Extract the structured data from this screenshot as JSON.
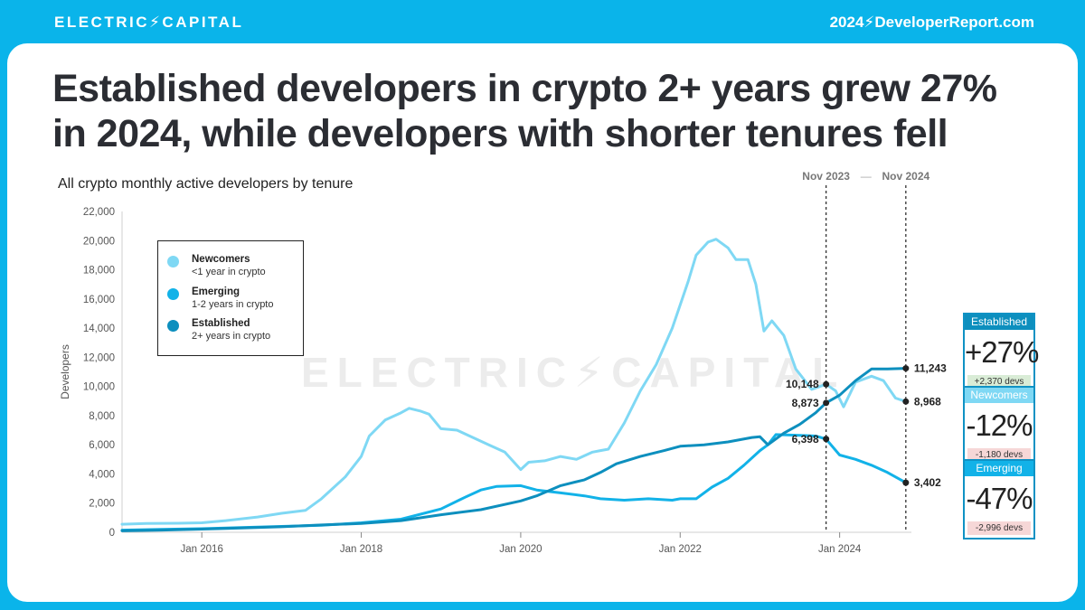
{
  "header": {
    "logo": "ELECTRIC⚡CAPITAL",
    "site": "2024⚡DeveloperReport.com"
  },
  "headline": "Established developers in crypto 2+ years grew 27% in 2024, while developers with shorter tenures fell",
  "subtitle": "All crypto monthly active developers by tenure",
  "watermark": "ELECTRIC⚡CAPITAL",
  "colors": {
    "brand": "#0ab4ea",
    "newcomers": "#7fd8f4",
    "emerging": "#12b2e8",
    "established": "#0d8fbe",
    "positive": "#d9ecd6",
    "negative": "#f6d7d7"
  },
  "legend": [
    {
      "name": "Newcomers",
      "desc": "<1 year in crypto",
      "color_key": "newcomers"
    },
    {
      "name": "Emerging",
      "desc": "1-2 years in crypto",
      "color_key": "emerging"
    },
    {
      "name": "Established",
      "desc": "2+ years in crypto",
      "color_key": "established"
    }
  ],
  "stats": [
    {
      "label": "Established",
      "value": "+27%",
      "change": "+2,370 devs",
      "head_color": "#0d8fbe",
      "foot_color": "#d9ecd6"
    },
    {
      "label": "Newcomers",
      "value": "-12%",
      "change": "-1,180 devs",
      "head_color": "#7fd8f4",
      "foot_color": "#f6d7d7"
    },
    {
      "label": "Emerging",
      "value": "-47%",
      "change": "-2,996 devs",
      "head_color": "#12b2e8",
      "foot_color": "#f6d7d7"
    }
  ],
  "chart_data": {
    "type": "line",
    "title": "All crypto monthly active developers by tenure",
    "xlabel": "",
    "ylabel": "Developers",
    "x_range": [
      2015.0,
      2024.9
    ],
    "ylim": [
      0,
      22000
    ],
    "y_ticks": [
      0,
      2000,
      4000,
      6000,
      8000,
      10000,
      12000,
      14000,
      16000,
      18000,
      20000,
      22000
    ],
    "y_tick_labels": [
      "0",
      "2,000",
      "4,000",
      "6,000",
      "8,000",
      "10,000",
      "12,000",
      "14,000",
      "16,000",
      "18,000",
      "20,000",
      "22,000"
    ],
    "x_ticks": [
      2016.0,
      2018.0,
      2020.0,
      2022.0,
      2024.0
    ],
    "x_tick_labels": [
      "Jan 2016",
      "Jan 2018",
      "Jan 2020",
      "Jan 2022",
      "Jan 2024"
    ],
    "markers": [
      {
        "x": 2023.83,
        "label": "Nov 2023"
      },
      {
        "x": 2024.83,
        "label": "Nov 2024"
      }
    ],
    "marker_connector": "—",
    "series": [
      {
        "name": "Newcomers",
        "color_key": "newcomers",
        "points": [
          [
            2015.0,
            550
          ],
          [
            2015.3,
            600
          ],
          [
            2015.7,
            620
          ],
          [
            2016.0,
            650
          ],
          [
            2016.3,
            800
          ],
          [
            2016.7,
            1050
          ],
          [
            2017.0,
            1300
          ],
          [
            2017.3,
            1500
          ],
          [
            2017.5,
            2300
          ],
          [
            2017.8,
            3800
          ],
          [
            2018.0,
            5200
          ],
          [
            2018.1,
            6600
          ],
          [
            2018.3,
            7700
          ],
          [
            2018.5,
            8200
          ],
          [
            2018.6,
            8500
          ],
          [
            2018.75,
            8300
          ],
          [
            2018.85,
            8100
          ],
          [
            2019.0,
            7100
          ],
          [
            2019.2,
            7000
          ],
          [
            2019.4,
            6500
          ],
          [
            2019.6,
            6000
          ],
          [
            2019.8,
            5500
          ],
          [
            2020.0,
            4300
          ],
          [
            2020.1,
            4800
          ],
          [
            2020.3,
            4900
          ],
          [
            2020.5,
            5200
          ],
          [
            2020.7,
            5000
          ],
          [
            2020.9,
            5500
          ],
          [
            2021.0,
            5600
          ],
          [
            2021.1,
            5700
          ],
          [
            2021.3,
            7500
          ],
          [
            2021.5,
            9700
          ],
          [
            2021.7,
            11500
          ],
          [
            2021.9,
            14000
          ],
          [
            2022.1,
            17200
          ],
          [
            2022.2,
            19000
          ],
          [
            2022.35,
            19900
          ],
          [
            2022.45,
            20100
          ],
          [
            2022.6,
            19500
          ],
          [
            2022.7,
            18700
          ],
          [
            2022.85,
            18700
          ],
          [
            2022.95,
            17000
          ],
          [
            2023.05,
            13800
          ],
          [
            2023.15,
            14500
          ],
          [
            2023.3,
            13500
          ],
          [
            2023.45,
            11200
          ],
          [
            2023.65,
            9800
          ],
          [
            2023.83,
            10148
          ],
          [
            2023.95,
            9700
          ],
          [
            2024.05,
            8600
          ],
          [
            2024.2,
            10300
          ],
          [
            2024.4,
            10700
          ],
          [
            2024.55,
            10400
          ],
          [
            2024.7,
            9200
          ],
          [
            2024.83,
            8968
          ]
        ]
      },
      {
        "name": "Emerging",
        "color_key": "emerging",
        "points": [
          [
            2015.0,
            150
          ],
          [
            2015.5,
            200
          ],
          [
            2016.0,
            250
          ],
          [
            2016.5,
            320
          ],
          [
            2017.0,
            400
          ],
          [
            2017.5,
            480
          ],
          [
            2018.0,
            650
          ],
          [
            2018.5,
            900
          ],
          [
            2019.0,
            1600
          ],
          [
            2019.3,
            2400
          ],
          [
            2019.5,
            2900
          ],
          [
            2019.7,
            3150
          ],
          [
            2020.0,
            3200
          ],
          [
            2020.2,
            2900
          ],
          [
            2020.5,
            2700
          ],
          [
            2020.8,
            2500
          ],
          [
            2021.0,
            2300
          ],
          [
            2021.3,
            2200
          ],
          [
            2021.6,
            2300
          ],
          [
            2021.9,
            2200
          ],
          [
            2022.0,
            2300
          ],
          [
            2022.2,
            2300
          ],
          [
            2022.4,
            3100
          ],
          [
            2022.6,
            3700
          ],
          [
            2022.8,
            4600
          ],
          [
            2023.0,
            5600
          ],
          [
            2023.1,
            6000
          ],
          [
            2023.2,
            6700
          ],
          [
            2023.5,
            6650
          ],
          [
            2023.7,
            6600
          ],
          [
            2023.83,
            6398
          ],
          [
            2024.0,
            5300
          ],
          [
            2024.2,
            5000
          ],
          [
            2024.4,
            4600
          ],
          [
            2024.6,
            4100
          ],
          [
            2024.83,
            3402
          ]
        ]
      },
      {
        "name": "Established",
        "color_key": "established",
        "points": [
          [
            2015.0,
            100
          ],
          [
            2015.5,
            150
          ],
          [
            2016.0,
            220
          ],
          [
            2016.5,
            300
          ],
          [
            2017.0,
            380
          ],
          [
            2017.5,
            500
          ],
          [
            2018.0,
            600
          ],
          [
            2018.5,
            800
          ],
          [
            2019.0,
            1200
          ],
          [
            2019.5,
            1550
          ],
          [
            2020.0,
            2150
          ],
          [
            2020.2,
            2500
          ],
          [
            2020.5,
            3200
          ],
          [
            2020.8,
            3600
          ],
          [
            2021.0,
            4100
          ],
          [
            2021.2,
            4700
          ],
          [
            2021.5,
            5200
          ],
          [
            2021.8,
            5600
          ],
          [
            2022.0,
            5900
          ],
          [
            2022.3,
            6000
          ],
          [
            2022.6,
            6200
          ],
          [
            2022.9,
            6500
          ],
          [
            2023.0,
            6550
          ],
          [
            2023.1,
            6000
          ],
          [
            2023.3,
            6800
          ],
          [
            2023.5,
            7400
          ],
          [
            2023.7,
            8200
          ],
          [
            2023.83,
            8873
          ],
          [
            2024.0,
            9400
          ],
          [
            2024.2,
            10400
          ],
          [
            2024.4,
            11200
          ],
          [
            2024.6,
            11200
          ],
          [
            2024.83,
            11243
          ]
        ]
      }
    ],
    "annotations": [
      {
        "series": "Newcomers",
        "x": 2023.83,
        "value": 10148,
        "text": "10,148"
      },
      {
        "series": "Established",
        "x": 2023.83,
        "value": 8873,
        "text": "8,873"
      },
      {
        "series": "Emerging",
        "x": 2023.83,
        "value": 6398,
        "text": "6,398"
      },
      {
        "series": "Established",
        "x": 2024.83,
        "value": 11243,
        "text": "11,243"
      },
      {
        "series": "Newcomers",
        "x": 2024.83,
        "value": 8968,
        "text": "8,968"
      },
      {
        "series": "Emerging",
        "x": 2024.83,
        "value": 3402,
        "text": "3,402"
      }
    ]
  }
}
